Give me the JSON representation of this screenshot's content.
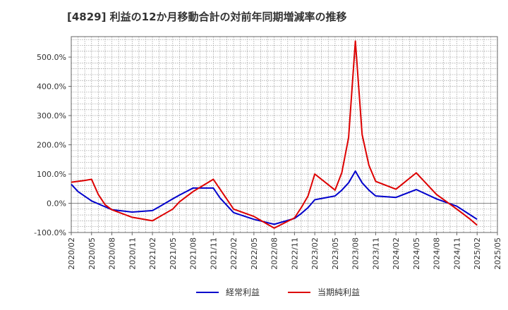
{
  "chart_data": {
    "type": "line",
    "title": "[4829]  利益の12か月移動合計の対前年同期増減率の推移",
    "xlabel": "",
    "ylabel": "",
    "ylim": [
      -100,
      570
    ],
    "yticks": [
      -100,
      0,
      100,
      200,
      300,
      400,
      500
    ],
    "ytick_labels": [
      "-100.0%",
      "0.0%",
      "100.0%",
      "200.0%",
      "300.0%",
      "400.0%",
      "500.0%"
    ],
    "x_range": [
      "2020/02",
      "2025/05"
    ],
    "xticks": [
      "2020/02",
      "2020/05",
      "2020/08",
      "2020/11",
      "2021/02",
      "2021/05",
      "2021/08",
      "2021/11",
      "2022/02",
      "2022/05",
      "2022/08",
      "2022/11",
      "2023/02",
      "2023/05",
      "2023/08",
      "2023/11",
      "2024/02",
      "2024/05",
      "2024/08",
      "2024/11",
      "2025/02",
      "2025/05"
    ],
    "grid": true,
    "legend_position": "bottom",
    "series": [
      {
        "name": "経常利益",
        "color": "#0000cc",
        "x": [
          "2020/02",
          "2020/03",
          "2020/05",
          "2020/08",
          "2020/11",
          "2021/02",
          "2021/03",
          "2021/05",
          "2021/06",
          "2021/08",
          "2021/11",
          "2021/12",
          "2022/02",
          "2022/05",
          "2022/08",
          "2022/11",
          "2022/12",
          "2023/01",
          "2023/02",
          "2023/05",
          "2023/06",
          "2023/07",
          "2023/08",
          "2023/09",
          "2023/10",
          "2023/11",
          "2024/02",
          "2024/05",
          "2024/08",
          "2024/11",
          "2025/01",
          "2025/02"
        ],
        "values": [
          65,
          40,
          8,
          -22,
          -30,
          -25,
          -12,
          15,
          28,
          52,
          52,
          18,
          -32,
          -55,
          -72,
          -52,
          -35,
          -15,
          12,
          25,
          45,
          70,
          110,
          70,
          45,
          25,
          20,
          47,
          15,
          -10,
          -40,
          -55
        ]
      },
      {
        "name": "当期純利益",
        "color": "#dd0000",
        "x": [
          "2020/02",
          "2020/04",
          "2020/05",
          "2020/06",
          "2020/07",
          "2020/08",
          "2020/11",
          "2021/02",
          "2021/05",
          "2021/06",
          "2021/08",
          "2021/11",
          "2022/02",
          "2022/05",
          "2022/08",
          "2022/11",
          "2022/12",
          "2023/01",
          "2023/02",
          "2023/05",
          "2023/06",
          "2023/07",
          "2023/08",
          "2023/09",
          "2023/10",
          "2023/11",
          "2024/02",
          "2024/05",
          "2024/08",
          "2024/11",
          "2025/01",
          "2025/02"
        ],
        "values": [
          72,
          78,
          82,
          30,
          -5,
          -22,
          -48,
          -60,
          -20,
          5,
          40,
          82,
          -20,
          -45,
          -85,
          -50,
          -15,
          25,
          100,
          45,
          105,
          225,
          555,
          235,
          130,
          75,
          48,
          104,
          30,
          -20,
          -55,
          -75
        ]
      }
    ]
  }
}
